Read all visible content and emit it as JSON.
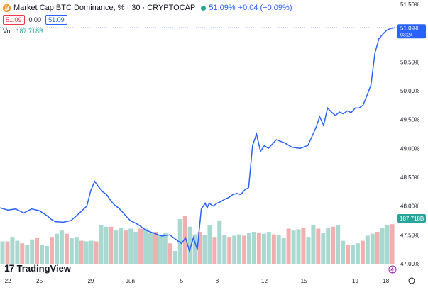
{
  "header": {
    "title": "Market Cap BTC Dominance, % · 30 · CRYPTOCAP",
    "last": "51.09%",
    "change": "+0.04 (+0.09%)",
    "sell": "51.09",
    "spread": "0.00",
    "buy": "51.09",
    "vol_label": "Vol",
    "vol_value": "187.718B",
    "coin_glyph": "₿"
  },
  "branding": {
    "name": "TradingView",
    "mark": "17"
  },
  "colors": {
    "line": "#2962ff",
    "vol_up": "#a8d8d0",
    "vol_down": "#f0b0b0",
    "text": "#131722"
  },
  "price_tag": {
    "value": "51.09%",
    "time": "03:24"
  },
  "vol_tag": "187.718B",
  "chart_data": {
    "type": "line",
    "x_ticks": [
      "22",
      "25",
      "29",
      "Jun",
      "5",
      "8",
      "12",
      "15",
      "19",
      "18:"
    ],
    "y_ticks": [
      "51.50%",
      "51.00%",
      "50.50%",
      "50.00%",
      "49.50%",
      "49.00%",
      "48.50%",
      "48.00%",
      "47.50%",
      "47.00%"
    ],
    "ylim": [
      47.0,
      51.5
    ],
    "xlim": [
      0,
      100
    ],
    "series": [
      {
        "x": [
          0,
          2,
          4,
          6,
          8,
          10,
          12,
          13,
          14,
          16,
          18,
          20,
          22,
          23,
          24,
          25,
          26,
          27,
          28,
          29,
          30,
          31,
          32,
          33,
          35,
          37,
          39,
          41,
          43,
          45,
          46,
          47,
          48,
          49,
          50,
          51,
          52,
          52.5,
          53,
          54,
          55,
          56,
          57,
          58,
          59,
          60,
          61,
          62,
          63,
          64,
          65,
          66,
          67,
          68,
          70,
          72,
          74,
          76,
          78,
          80,
          81,
          82,
          83,
          84,
          85,
          86,
          87,
          88,
          89,
          90,
          91,
          92,
          93,
          94,
          95,
          96,
          97,
          98,
          99,
          100
        ],
        "y": [
          47.97,
          47.93,
          47.95,
          47.88,
          47.95,
          47.92,
          47.83,
          47.77,
          47.73,
          47.72,
          47.75,
          47.87,
          48.0,
          48.27,
          48.43,
          48.33,
          48.25,
          48.2,
          48.1,
          48.02,
          47.97,
          47.9,
          47.82,
          47.75,
          47.68,
          47.58,
          47.53,
          47.48,
          47.5,
          47.4,
          47.35,
          47.45,
          47.22,
          47.45,
          47.25,
          47.95,
          48.05,
          47.97,
          48.05,
          48.0,
          48.05,
          48.08,
          48.12,
          48.15,
          48.2,
          48.22,
          48.2,
          48.28,
          48.32,
          49.05,
          49.25,
          48.95,
          49.05,
          49.0,
          49.15,
          49.1,
          49.02,
          49.0,
          49.05,
          49.35,
          49.55,
          49.4,
          49.7,
          49.63,
          49.57,
          49.63,
          49.6,
          49.65,
          49.62,
          49.7,
          49.7,
          49.75,
          49.92,
          50.1,
          50.65,
          50.9,
          50.98,
          51.05,
          51.08,
          51.09
        ]
      }
    ],
    "volume": [
      0.35,
      0.35,
      0.42,
      0.36,
      0.32,
      0.3,
      0.38,
      0.4,
      0.3,
      0.28,
      0.42,
      0.47,
      0.52,
      0.47,
      0.4,
      0.42,
      0.36,
      0.35,
      0.36,
      0.35,
      0.6,
      0.58,
      0.58,
      0.52,
      0.56,
      0.52,
      0.55,
      0.5,
      0.55,
      0.55,
      0.48,
      0.5,
      0.45,
      0.48,
      0.32,
      0.2,
      0.7,
      0.75,
      0.58,
      0.46,
      0.5,
      0.45,
      0.6,
      0.42,
      0.68,
      0.45,
      0.42,
      0.44,
      0.46,
      0.44,
      0.48,
      0.5,
      0.49,
      0.47,
      0.5,
      0.46,
      0.45,
      0.4,
      0.55,
      0.52,
      0.54,
      0.56,
      0.42,
      0.6,
      0.55,
      0.48,
      0.56,
      0.58,
      0.6,
      0.36,
      0.3,
      0.3,
      0.32,
      0.36,
      0.44,
      0.47,
      0.5,
      0.56,
      0.6,
      0.62
    ]
  }
}
